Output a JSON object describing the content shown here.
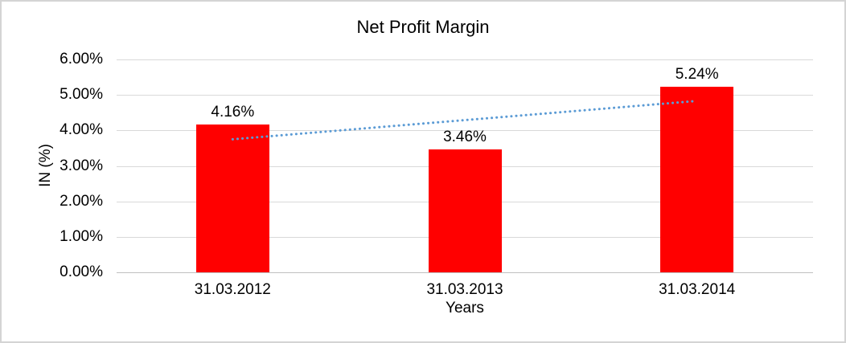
{
  "canvas": {
    "background": "#ffffff",
    "border_color": "#d4d4d4"
  },
  "chart_data": {
    "type": "bar",
    "title": "Net Profit Margin",
    "categories": [
      "31.03.2012",
      "31.03.2013",
      "31.03.2014"
    ],
    "values": [
      4.16,
      3.46,
      5.24
    ],
    "data_labels": [
      "4.16%",
      "3.46%",
      "5.24%"
    ],
    "xlabel": "Years",
    "ylabel": "IN (%)",
    "ylim": [
      0,
      6
    ],
    "yticks": [
      {
        "value": 0,
        "label": "0.00%"
      },
      {
        "value": 1,
        "label": "1.00%"
      },
      {
        "value": 2,
        "label": "2.00%"
      },
      {
        "value": 3,
        "label": "3.00%"
      },
      {
        "value": 4,
        "label": "4.00%"
      },
      {
        "value": 5,
        "label": "5.00%"
      },
      {
        "value": 6,
        "label": "6.00%"
      }
    ],
    "grid": true,
    "legend": "none",
    "bar_color": "#ff0000",
    "gridline_color": "#d9d9d9",
    "axis_line_color": "#bfbfbf",
    "trendline": {
      "style": "dotted",
      "color": "#5b9bd5",
      "points": [
        {
          "category_index": 0,
          "value": 3.75
        },
        {
          "category_index": 2,
          "value": 4.83
        }
      ]
    }
  }
}
